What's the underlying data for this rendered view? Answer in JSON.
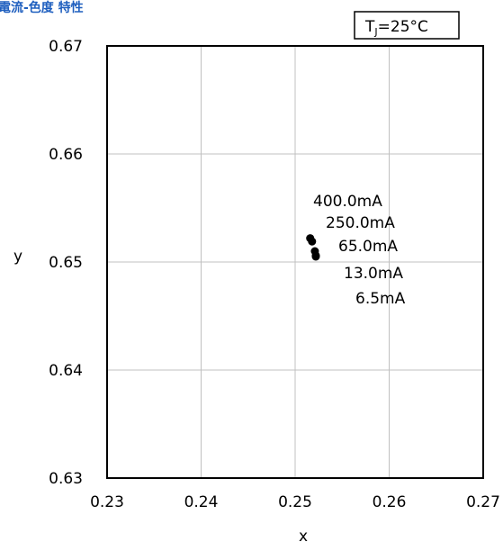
{
  "chart_data": {
    "type": "scatter",
    "title": "電流-色度 特性",
    "condition": {
      "base": "T",
      "sub": "J",
      "rest": "=25°C"
    },
    "xlabel": "x",
    "ylabel": "y",
    "xlim": [
      0.23,
      0.27
    ],
    "ylim": [
      0.63,
      0.67
    ],
    "xticks": [
      "0.23",
      "0.24",
      "0.25",
      "0.26",
      "0.27"
    ],
    "yticks": [
      "0.63",
      "0.64",
      "0.65",
      "0.66",
      "0.67"
    ],
    "grid": true,
    "points": [
      {
        "label": "400.0mA",
        "x": 0.2516,
        "y": 0.6522
      },
      {
        "label": "250.0mA",
        "x": 0.2518,
        "y": 0.6519
      },
      {
        "label": "65.0mA",
        "x": 0.2521,
        "y": 0.651
      },
      {
        "label": "13.0mA",
        "x": 0.2522,
        "y": 0.6506
      },
      {
        "label": "6.5mA",
        "x": 0.2522,
        "y": 0.6505
      }
    ],
    "colors": {
      "title": "#1f5fbf",
      "marker": "#000000",
      "grid": "#c0c0c0"
    }
  }
}
